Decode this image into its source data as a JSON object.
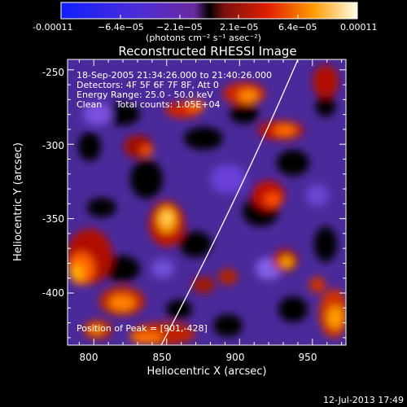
{
  "colorbar": {
    "tick_labels": [
      "-0.00011",
      "−6.4e−05",
      "−2.1e−05",
      "2.1e−05",
      "6.4e−05",
      "0.00011"
    ],
    "unit_label": "(photons cm⁻² s⁻¹ asec⁻²)"
  },
  "title": "Reconstructed RHESSI Image",
  "info_lines": [
    "18-Sep-2005 21:34:26.000 to 21:40:26.000",
    "Detectors: 4F 5F 6F 7F 8F, Att 0",
    "Energy Range: 25.0 - 50.0 keV",
    "Clean     Total counts: 1.05E+04"
  ],
  "peak_label": "Position of Peak = [901,-428]",
  "axes": {
    "xlabel": "Heliocentric X (arcsec)",
    "ylabel": "Heliocentric Y (arcsec)",
    "x_ticks": [
      "800",
      "850",
      "900",
      "950"
    ],
    "y_ticks": [
      "-250",
      "-300",
      "-350",
      "-400"
    ],
    "x_range": [
      782,
      973
    ],
    "y_range": [
      -435,
      -243
    ]
  },
  "timestamp": "12-Jul-2013 17:49"
}
